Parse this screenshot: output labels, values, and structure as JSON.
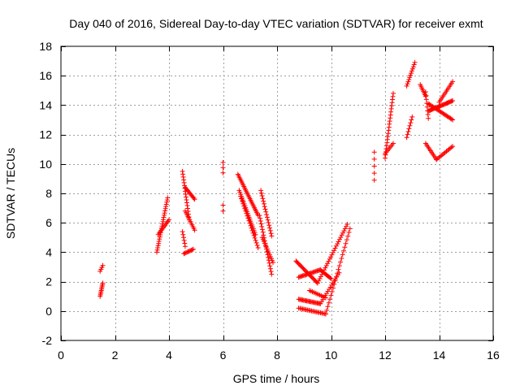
{
  "chart_data": {
    "type": "scatter",
    "title": "Day 040 of 2016, Sidereal Day-to-day VTEC variation (SDTVAR) for receiver exmt",
    "xlabel": "GPS time / hours",
    "ylabel": "SDTVAR / TECUs",
    "xlim": [
      0,
      16
    ],
    "ylim": [
      -2,
      18
    ],
    "xticks": [
      0,
      2,
      4,
      6,
      8,
      10,
      12,
      14,
      16
    ],
    "yticks": [
      -2,
      0,
      2,
      4,
      6,
      8,
      10,
      12,
      14,
      16,
      18
    ],
    "grid": true,
    "marker": "plus",
    "color": "#ff0000",
    "segments": [
      {
        "x0": 1.45,
        "x1": 1.55,
        "y0": 1.0,
        "y1": 1.9,
        "n": 10
      },
      {
        "x0": 1.45,
        "x1": 1.55,
        "y0": 2.7,
        "y1": 3.1,
        "n": 4
      },
      {
        "x0": 3.55,
        "x1": 3.95,
        "y0": 4.0,
        "y1": 7.7,
        "n": 26
      },
      {
        "x0": 3.6,
        "x1": 4.0,
        "y0": 5.2,
        "y1": 6.2,
        "n": 12
      },
      {
        "x0": 4.5,
        "x1": 4.75,
        "y0": 9.5,
        "y1": 6.2,
        "n": 18
      },
      {
        "x0": 4.5,
        "x1": 4.6,
        "y0": 5.4,
        "y1": 4.4,
        "n": 6
      },
      {
        "x0": 4.55,
        "x1": 4.9,
        "y0": 3.9,
        "y1": 4.2,
        "n": 10
      },
      {
        "x0": 4.6,
        "x1": 4.95,
        "y0": 8.4,
        "y1": 7.6,
        "n": 12
      },
      {
        "x0": 4.6,
        "x1": 4.95,
        "y0": 6.8,
        "y1": 5.5,
        "n": 12
      },
      {
        "x0": 6.0,
        "x1": 6.0,
        "y0": 10.1,
        "y1": 9.4,
        "n": 3
      },
      {
        "x0": 6.0,
        "x1": 6.0,
        "y0": 7.2,
        "y1": 6.8,
        "n": 2
      },
      {
        "x0": 6.55,
        "x1": 7.3,
        "y0": 9.3,
        "y1": 6.5,
        "n": 28
      },
      {
        "x0": 6.6,
        "x1": 7.2,
        "y0": 8.2,
        "y1": 5.2,
        "n": 24
      },
      {
        "x0": 6.65,
        "x1": 7.3,
        "y0": 7.8,
        "y1": 4.3,
        "n": 22
      },
      {
        "x0": 7.4,
        "x1": 7.8,
        "y0": 8.2,
        "y1": 5.1,
        "n": 18
      },
      {
        "x0": 7.35,
        "x1": 7.8,
        "y0": 6.5,
        "y1": 2.5,
        "n": 22
      },
      {
        "x0": 7.45,
        "x1": 7.85,
        "y0": 5.0,
        "y1": 3.3,
        "n": 14
      },
      {
        "x0": 8.7,
        "x1": 9.5,
        "y0": 3.4,
        "y1": 1.9,
        "n": 24
      },
      {
        "x0": 9.5,
        "x1": 10.6,
        "y0": 1.9,
        "y1": 5.9,
        "n": 28
      },
      {
        "x0": 8.8,
        "x1": 9.6,
        "y0": 2.3,
        "y1": 2.8,
        "n": 22
      },
      {
        "x0": 9.6,
        "x1": 10.0,
        "y0": 2.8,
        "y1": 2.2,
        "n": 12
      },
      {
        "x0": 8.8,
        "x1": 9.6,
        "y0": 0.8,
        "y1": 0.5,
        "n": 22
      },
      {
        "x0": 9.6,
        "x1": 10.3,
        "y0": 0.5,
        "y1": 2.6,
        "n": 16
      },
      {
        "x0": 8.8,
        "x1": 9.8,
        "y0": 0.2,
        "y1": -0.2,
        "n": 22
      },
      {
        "x0": 9.8,
        "x1": 10.7,
        "y0": -0.2,
        "y1": 5.6,
        "n": 24
      },
      {
        "x0": 9.2,
        "x1": 9.8,
        "y0": 1.4,
        "y1": 0.9,
        "n": 12
      },
      {
        "x0": 11.6,
        "x1": 11.6,
        "y0": 8.9,
        "y1": 10.8,
        "n": 5
      },
      {
        "x0": 12.0,
        "x1": 12.3,
        "y0": 10.4,
        "y1": 14.8,
        "n": 22
      },
      {
        "x0": 12.0,
        "x1": 12.3,
        "y0": 10.7,
        "y1": 11.4,
        "n": 8
      },
      {
        "x0": 12.8,
        "x1": 13.1,
        "y0": 15.3,
        "y1": 16.9,
        "n": 12
      },
      {
        "x0": 12.8,
        "x1": 13.0,
        "y0": 11.8,
        "y1": 13.2,
        "n": 8
      },
      {
        "x0": 13.3,
        "x1": 13.5,
        "y0": 15.4,
        "y1": 14.6,
        "n": 8
      },
      {
        "x0": 13.5,
        "x1": 13.6,
        "y0": 14.9,
        "y1": 13.1,
        "n": 8
      },
      {
        "x0": 13.6,
        "x1": 14.5,
        "y0": 13.6,
        "y1": 14.3,
        "n": 28
      },
      {
        "x0": 13.6,
        "x1": 14.5,
        "y0": 14.1,
        "y1": 13.0,
        "n": 24
      },
      {
        "x0": 14.0,
        "x1": 14.5,
        "y0": 14.2,
        "y1": 15.6,
        "n": 14
      },
      {
        "x0": 13.5,
        "x1": 13.9,
        "y0": 11.4,
        "y1": 10.3,
        "n": 12
      },
      {
        "x0": 13.9,
        "x1": 14.5,
        "y0": 10.3,
        "y1": 11.2,
        "n": 14
      }
    ]
  }
}
